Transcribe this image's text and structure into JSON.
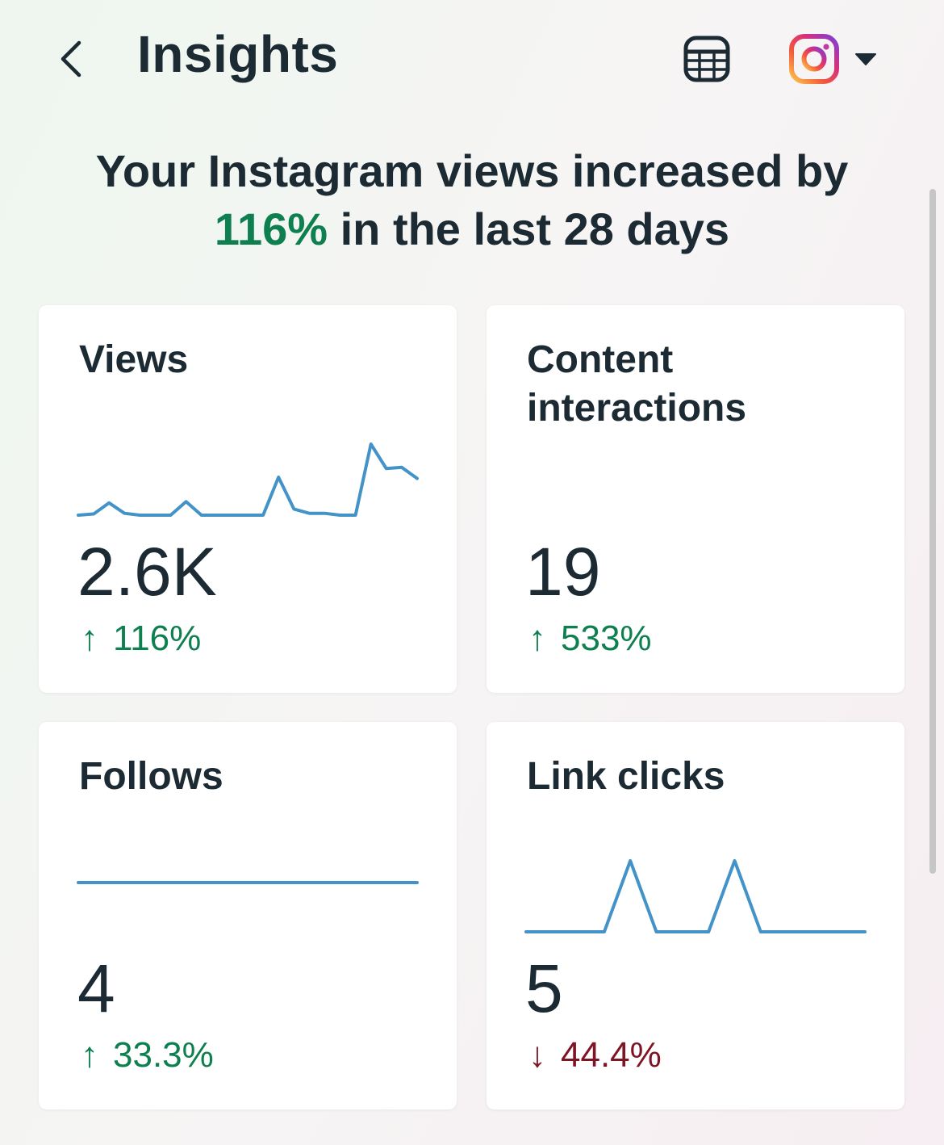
{
  "header": {
    "title": "Insights",
    "back_icon": "chevron-left-icon",
    "export_icon": "table-export-icon",
    "account_icon": "instagram-logo-icon",
    "caret_icon": "caret-down-icon"
  },
  "summary": {
    "prefix": "Your Instagram views increased by",
    "highlight": "116%",
    "suffix": "in the last 28 days"
  },
  "colors": {
    "text": "#1c2b33",
    "positive": "#0e7f4f",
    "negative": "#7d1525",
    "sparkline": "#4493c8",
    "card": "#ffffff"
  },
  "metrics": [
    {
      "title": "Views",
      "value": "2.6K",
      "change": "116%",
      "direction": "up",
      "arrow": "↑",
      "sparkline": [
        0,
        0.2,
        2,
        0.3,
        0,
        0,
        0,
        2.2,
        0,
        0,
        0,
        0,
        0,
        6.2,
        1,
        0.3,
        0.3,
        0,
        0,
        11.6,
        7.6,
        7.8,
        6
      ]
    },
    {
      "title": "Content interactions",
      "value": "19",
      "change": "533%",
      "direction": "up",
      "arrow": "↑",
      "sparkline": []
    },
    {
      "title": "Follows",
      "value": "4",
      "change": "33.3%",
      "direction": "up",
      "arrow": "↑",
      "sparkline": [
        0,
        0
      ]
    },
    {
      "title": "Link clicks",
      "value": "5",
      "change": "44.4%",
      "direction": "down",
      "arrow": "↓",
      "sparkline": [
        0,
        0,
        0,
        0,
        1,
        0,
        0,
        0,
        1,
        0,
        0,
        0,
        0,
        0
      ]
    }
  ]
}
